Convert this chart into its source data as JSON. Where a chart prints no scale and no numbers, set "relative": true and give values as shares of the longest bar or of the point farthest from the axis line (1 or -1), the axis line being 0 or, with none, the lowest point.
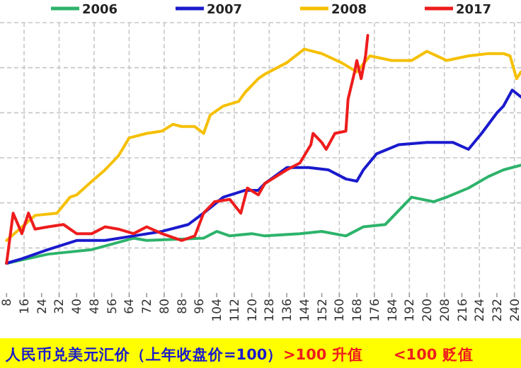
{
  "chart_data": {
    "type": "line",
    "relative": true,
    "grid": true,
    "legend": "top",
    "tick_labels": "x",
    "line_style": "solid",
    "marker": "none",
    "xlim": [
      5,
      243
    ],
    "xticks": [
      8,
      16,
      24,
      32,
      40,
      48,
      56,
      64,
      72,
      80,
      88,
      96,
      104,
      112,
      120,
      128,
      136,
      144,
      152,
      160,
      168,
      176,
      184,
      192,
      200,
      208,
      216,
      224,
      232,
      240
    ],
    "annotations": [
      "人民币兑美元汇价（上年收盘价=100）",
      ">100 升值",
      "<100 贬值"
    ],
    "series": [
      {
        "name": "2006",
        "color": "#2db36b",
        "x": [
          8,
          27,
          47,
          66,
          72,
          98,
          104,
          110,
          120,
          126,
          142,
          152,
          163,
          171,
          181,
          193,
          203,
          209,
          219,
          228,
          235,
          243
        ],
        "values": [
          0,
          0.04,
          0.06,
          0.11,
          0.1,
          0.11,
          0.14,
          0.12,
          0.13,
          0.12,
          0.13,
          0.14,
          0.12,
          0.16,
          0.17,
          0.29,
          0.27,
          0.29,
          0.33,
          0.38,
          0.41,
          0.43
        ]
      },
      {
        "name": "2007",
        "color": "#1a1acd",
        "x": [
          8,
          15,
          27,
          40,
          53,
          66,
          79,
          91,
          98,
          107,
          117,
          123,
          126,
          136,
          146,
          155,
          163,
          168,
          171,
          177,
          187,
          200,
          212,
          219,
          225,
          232,
          235,
          239,
          243
        ],
        "values": [
          0,
          0.02,
          0.06,
          0.1,
          0.1,
          0.12,
          0.14,
          0.17,
          0.22,
          0.29,
          0.32,
          0.32,
          0.35,
          0.42,
          0.42,
          0.41,
          0.37,
          0.36,
          0.41,
          0.48,
          0.52,
          0.53,
          0.53,
          0.5,
          0.57,
          0.66,
          0.69,
          0.76,
          0.73
        ]
      },
      {
        "name": "2008",
        "color": "#f5c000",
        "x": [
          8,
          21,
          31,
          37,
          40,
          47,
          53,
          59,
          64,
          72,
          79,
          84,
          88,
          94,
          98,
          101,
          107,
          114,
          117,
          123,
          126,
          136,
          144,
          152,
          161,
          168,
          174,
          184,
          193,
          200,
          209,
          219,
          228,
          235,
          238,
          241,
          243
        ],
        "values": [
          0.1,
          0.21,
          0.22,
          0.29,
          0.3,
          0.36,
          0.41,
          0.47,
          0.55,
          0.57,
          0.58,
          0.61,
          0.6,
          0.6,
          0.57,
          0.65,
          0.69,
          0.71,
          0.75,
          0.81,
          0.83,
          0.88,
          0.94,
          0.92,
          0.88,
          0.84,
          0.91,
          0.89,
          0.89,
          0.93,
          0.89,
          0.91,
          0.92,
          0.92,
          0.91,
          0.81,
          0.84
        ]
      },
      {
        "name": "2017",
        "color": "#ee1c1c",
        "x": [
          8,
          11,
          15,
          18,
          21,
          27,
          34,
          40,
          47,
          53,
          59,
          66,
          72,
          79,
          88,
          94,
          98,
          103,
          110,
          115,
          118,
          123,
          126,
          136,
          142,
          147,
          148,
          152,
          154,
          158,
          163,
          164,
          167,
          168,
          170,
          172,
          173
        ],
        "values": [
          0,
          0.22,
          0.13,
          0.22,
          0.15,
          0.16,
          0.17,
          0.13,
          0.13,
          0.16,
          0.15,
          0.13,
          0.16,
          0.13,
          0.1,
          0.12,
          0.22,
          0.27,
          0.28,
          0.22,
          0.33,
          0.3,
          0.35,
          0.41,
          0.44,
          0.52,
          0.57,
          0.53,
          0.5,
          0.57,
          0.58,
          0.72,
          0.84,
          0.89,
          0.81,
          0.91,
          1
        ]
      }
    ]
  }
}
